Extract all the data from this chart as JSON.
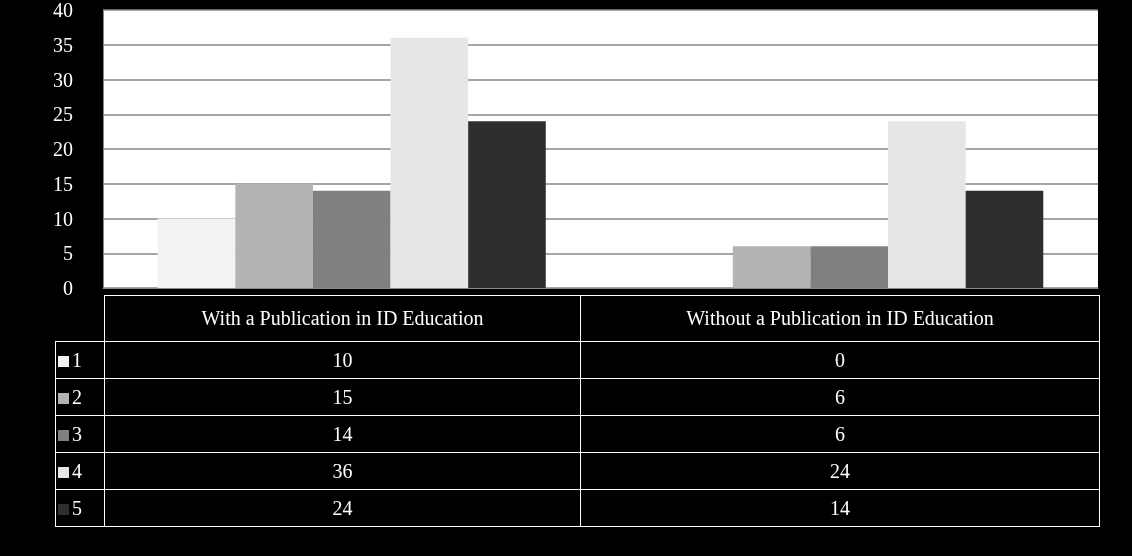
{
  "chart_data": {
    "type": "bar",
    "categories": [
      "With a Publication in ID Education",
      "Without a Publication in ID Education"
    ],
    "series": [
      {
        "name": "1",
        "color": "#f2f2f2",
        "values": [
          10,
          0
        ]
      },
      {
        "name": "2",
        "color": "#b3b3b3",
        "values": [
          15,
          6
        ]
      },
      {
        "name": "3",
        "color": "#808080",
        "values": [
          14,
          6
        ]
      },
      {
        "name": "4",
        "color": "#e6e6e6",
        "values": [
          36,
          24
        ]
      },
      {
        "name": "5",
        "color": "#2e2e2e",
        "values": [
          24,
          14
        ]
      }
    ],
    "ylim": [
      0,
      40
    ],
    "yticks": [
      0,
      5,
      10,
      15,
      20,
      25,
      30,
      35,
      40
    ],
    "grid": "y",
    "legend": "bottom",
    "data_labels": true
  }
}
